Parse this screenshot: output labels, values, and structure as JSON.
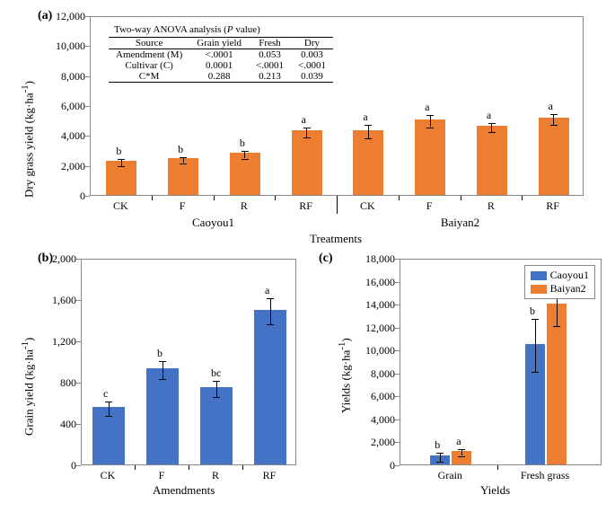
{
  "colors": {
    "orange": "#ed7d31",
    "blue": "#4472c4",
    "axis": "#888888",
    "bg": "#ffffff",
    "text": "#000000"
  },
  "panel_a": {
    "label": "(a)",
    "type": "bar",
    "ylabel_html": "Dry grass yield (kg·ha⁻¹)",
    "xlabel": "Treatments",
    "ylim": [
      0,
      12000
    ],
    "ytick_step": 2000,
    "yticks": [
      "0",
      "2,000",
      "4,000",
      "6,000",
      "8,000",
      "10,000",
      "12,000"
    ],
    "groups": [
      {
        "name": "Caoyou1",
        "cats": [
          "CK",
          "F",
          "R",
          "RF"
        ]
      },
      {
        "name": "Baiyan2",
        "cats": [
          "CK",
          "F",
          "R",
          "RF"
        ]
      }
    ],
    "bars": [
      {
        "cat": "CK",
        "grp": "Caoyou1",
        "value": 2300,
        "err": 250,
        "sig": "b"
      },
      {
        "cat": "F",
        "grp": "Caoyou1",
        "value": 2450,
        "err": 200,
        "sig": "b"
      },
      {
        "cat": "R",
        "grp": "Caoyou1",
        "value": 2800,
        "err": 250,
        "sig": "b"
      },
      {
        "cat": "RF",
        "grp": "Caoyou1",
        "value": 4300,
        "err": 350,
        "sig": "a"
      },
      {
        "cat": "CK",
        "grp": "Baiyan2",
        "value": 4350,
        "err": 450,
        "sig": "a"
      },
      {
        "cat": "F",
        "grp": "Baiyan2",
        "value": 5050,
        "err": 400,
        "sig": "a"
      },
      {
        "cat": "R",
        "grp": "Baiyan2",
        "value": 4600,
        "err": 300,
        "sig": "a"
      },
      {
        "cat": "RF",
        "grp": "Baiyan2",
        "value": 5150,
        "err": 350,
        "sig": "a"
      }
    ],
    "bar_color": "#ed7d31",
    "anova": {
      "title": "Two-way ANOVA analysis (P value)",
      "title_italic_word": "P",
      "cols": [
        "Source",
        "Grain yield",
        "Fresh",
        "Dry"
      ],
      "rows": [
        [
          "Amendment (M)",
          "<.0001",
          "0.053",
          "0.003"
        ],
        [
          "Cultivar (C)",
          "0.0001",
          "<.0001",
          "<.0001"
        ],
        [
          "C*M",
          "0.288",
          "0.213",
          "0.039"
        ]
      ]
    }
  },
  "panel_b": {
    "label": "(b)",
    "type": "bar",
    "ylabel_html": "Grain yield (kg·ha⁻¹)",
    "xlabel": "Amendments",
    "ylim": [
      0,
      2000
    ],
    "ytick_step": 400,
    "yticks": [
      "0",
      "400",
      "800",
      "1,200",
      "1,600",
      "2,000"
    ],
    "cats": [
      "CK",
      "F",
      "R",
      "RF"
    ],
    "bars": [
      {
        "cat": "CK",
        "value": 560,
        "err": 70,
        "sig": "c"
      },
      {
        "cat": "F",
        "value": 930,
        "err": 90,
        "sig": "b"
      },
      {
        "cat": "R",
        "value": 750,
        "err": 80,
        "sig": "bc"
      },
      {
        "cat": "RF",
        "value": 1500,
        "err": 130,
        "sig": "a"
      }
    ],
    "bar_color": "#4472c4"
  },
  "panel_c": {
    "label": "(c)",
    "type": "grouped-bar",
    "ylabel_html": "Yields (kg·ha⁻¹)",
    "xlabel": "Yields",
    "ylim": [
      0,
      18000
    ],
    "ytick_step": 2000,
    "yticks": [
      "0",
      "2,000",
      "4,000",
      "6,000",
      "8,000",
      "10,000",
      "12,000",
      "14,000",
      "16,000",
      "18,000"
    ],
    "cats": [
      "Grain",
      "Fresh grass"
    ],
    "series": [
      {
        "name": "Caoyou1",
        "color": "#4472c4"
      },
      {
        "name": "Baiyan2",
        "color": "#ed7d31"
      }
    ],
    "bars": [
      {
        "cat": "Grain",
        "series": "Caoyou1",
        "value": 800,
        "err": 400,
        "sig": "b"
      },
      {
        "cat": "Grain",
        "series": "Baiyan2",
        "value": 1200,
        "err": 300,
        "sig": "a"
      },
      {
        "cat": "Fresh grass",
        "series": "Caoyou1",
        "value": 10500,
        "err": 2300,
        "sig": "b"
      },
      {
        "cat": "Fresh grass",
        "series": "Baiyan2",
        "value": 14000,
        "err": 1800,
        "sig": "a"
      }
    ]
  }
}
